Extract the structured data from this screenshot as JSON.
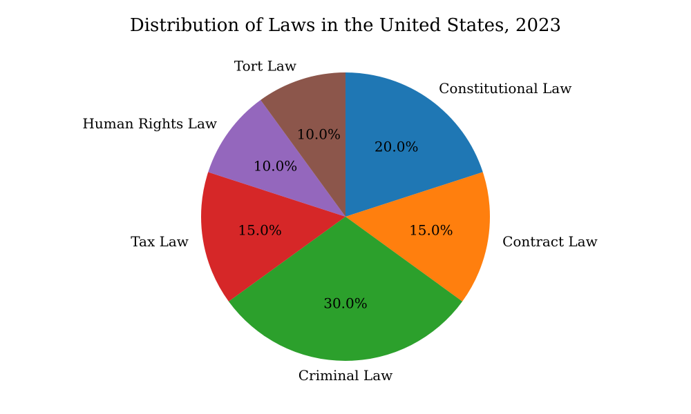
{
  "chart_data": {
    "type": "pie",
    "title": "Distribution of Laws in the United States, 2023",
    "start_angle_deg": 90,
    "direction": "clockwise",
    "slices": [
      {
        "label": "Constitutional Law",
        "value": 20,
        "pct_label": "20.0%",
        "color": "#1f77b4"
      },
      {
        "label": "Contract Law",
        "value": 15,
        "pct_label": "15.0%",
        "color": "#ff7f0e"
      },
      {
        "label": "Criminal Law",
        "value": 30,
        "pct_label": "30.0%",
        "color": "#2ca02c"
      },
      {
        "label": "Tax Law",
        "value": 15,
        "pct_label": "15.0%",
        "color": "#d62728"
      },
      {
        "label": "Human Rights Law",
        "value": 10,
        "pct_label": "10.0%",
        "color": "#9467bd"
      },
      {
        "label": "Tort Law",
        "value": 10,
        "pct_label": "10.0%",
        "color": "#8c564b"
      }
    ]
  }
}
